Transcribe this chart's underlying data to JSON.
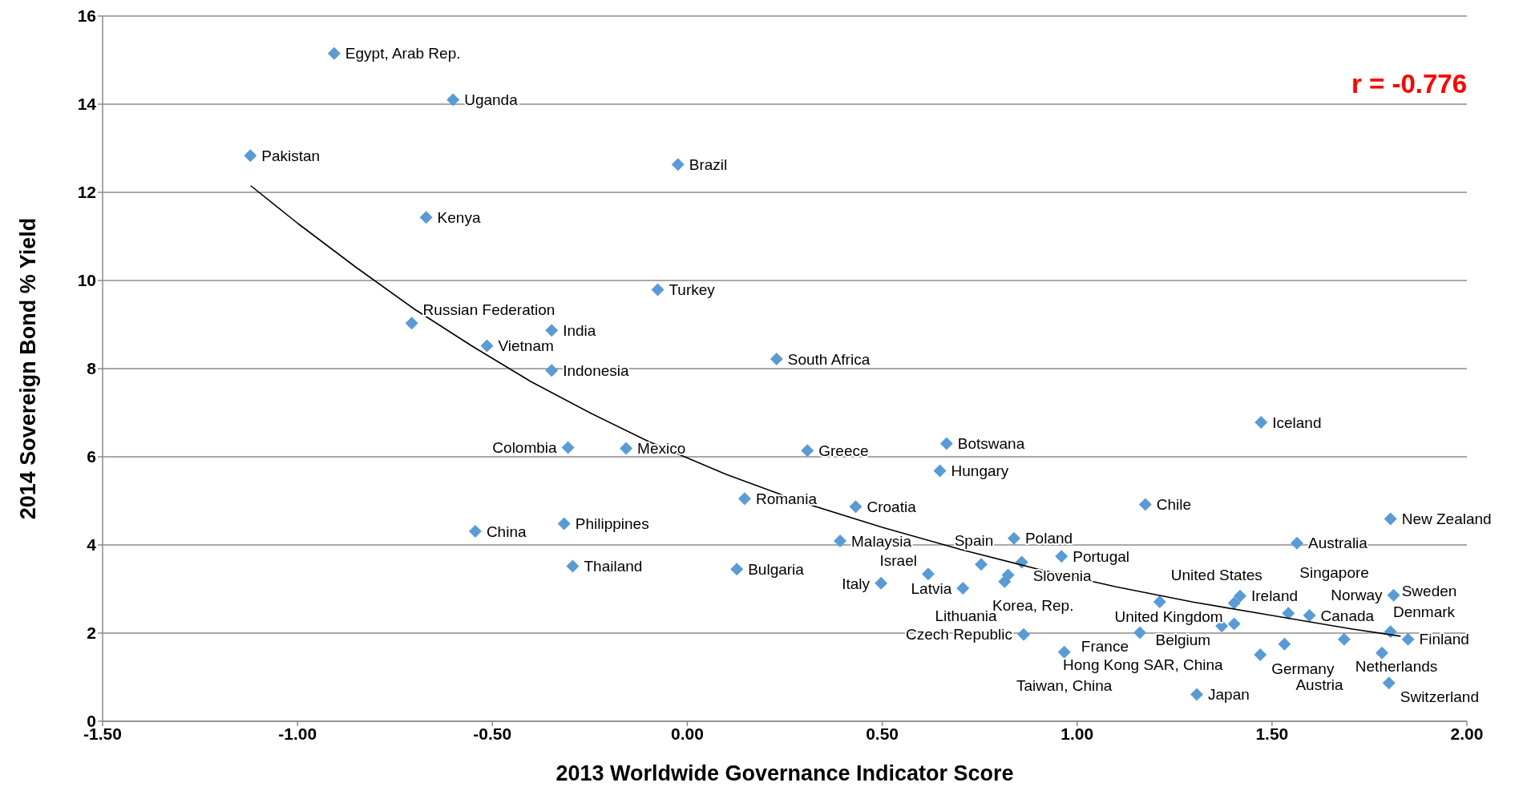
{
  "chart_data": {
    "type": "scatter",
    "xlabel": "2013 Worldwide Governance Indicator Score",
    "ylabel": "2014 Sovereign Bond % Yield",
    "xlim": [
      -1.5,
      2.0
    ],
    "xticks": [
      {
        "value": -1.5,
        "label": "-1.50"
      },
      {
        "value": -1.0,
        "label": "-1.00"
      },
      {
        "value": -0.5,
        "label": "-0.50"
      },
      {
        "value": 0,
        "label": "0.00"
      },
      {
        "value": 0.5,
        "label": "0.50"
      },
      {
        "value": 1.0,
        "label": "1.00"
      },
      {
        "value": 1.5,
        "label": "1.50"
      },
      {
        "value": 2.0,
        "label": "2.00"
      }
    ],
    "ylim": [
      0,
      16
    ],
    "yticks": [
      0,
      2,
      4,
      6,
      8,
      10,
      12,
      14,
      16
    ],
    "grid": "y",
    "marker": "diamond",
    "series": [
      {
        "color": "#5b9bd5",
        "x": [
          -0.906,
          -0.601,
          -1.121,
          -0.024,
          -0.67,
          -0.076,
          -0.707,
          -0.348,
          -0.514,
          -0.348,
          0.229,
          1.472,
          -0.306,
          -0.157,
          0.308,
          0.665,
          0.648,
          0.147,
          0.432,
          1.175,
          1.804,
          -0.544,
          -0.316,
          0.392,
          0.838,
          1.564,
          -0.294,
          0.127,
          0.96,
          0.754,
          0.858,
          0.618,
          0.823,
          0.814,
          0.707,
          0.497,
          1.212,
          1.418,
          1.403,
          1.542,
          1.596,
          1.371,
          1.403,
          1.161,
          0.863,
          0.967,
          1.307,
          1.47,
          1.532,
          1.685,
          1.782,
          1.804,
          1.849,
          1.812,
          1.8
        ],
        "values": [
          15.15,
          14.1,
          12.83,
          12.63,
          11.43,
          9.79,
          9.03,
          8.87,
          8.52,
          7.96,
          8.22,
          6.78,
          6.21,
          6.19,
          6.14,
          6.3,
          5.68,
          5.05,
          4.87,
          4.92,
          4.59,
          4.31,
          4.48,
          4.09,
          4.15,
          4.04,
          3.52,
          3.45,
          3.74,
          3.56,
          3.61,
          3.34,
          3.32,
          3.17,
          3.02,
          3.13,
          2.71,
          2.84,
          2.68,
          2.45,
          2.4,
          2.16,
          2.21,
          2.01,
          1.97,
          1.57,
          0.61,
          1.51,
          1.75,
          1.86,
          1.55,
          2.03,
          1.86,
          2.86,
          0.87
        ]
      },
      {
        "type": "line",
        "color": "#000000",
        "line_style": "solid",
        "marker": "none",
        "x": [
          -1.12,
          -1.0,
          -0.85,
          -0.7,
          -0.55,
          -0.4,
          -0.25,
          -0.1,
          0.1,
          0.3,
          0.5,
          0.7,
          0.9,
          1.1,
          1.3,
          1.5,
          1.7,
          1.83
        ],
        "values": [
          12.15,
          11.3,
          10.3,
          9.35,
          8.5,
          7.7,
          7.0,
          6.35,
          5.6,
          4.95,
          4.4,
          3.9,
          3.45,
          3.05,
          2.7,
          2.4,
          2.1,
          1.93
        ]
      }
    ],
    "annotations": [
      "r = -0.776",
      {
        "text": "Egypt, Arab Rep.",
        "x": -0.906,
        "y": 15.15
      },
      {
        "text": "Uganda",
        "x": -0.601,
        "y": 14.1
      },
      {
        "text": "Pakistan",
        "x": -1.121,
        "y": 12.83
      },
      {
        "text": "Brazil",
        "x": -0.024,
        "y": 12.63
      },
      {
        "text": "Kenya",
        "x": -0.67,
        "y": 11.43
      },
      {
        "text": "Turkey",
        "x": -0.076,
        "y": 9.79
      },
      {
        "text": "Russian Federation",
        "x": -0.707,
        "y": 9.03
      },
      {
        "text": "India",
        "x": -0.348,
        "y": 8.87
      },
      {
        "text": "Vietnam",
        "x": -0.514,
        "y": 8.52
      },
      {
        "text": "Indonesia",
        "x": -0.348,
        "y": 7.96
      },
      {
        "text": "South Africa",
        "x": 0.229,
        "y": 8.22
      },
      {
        "text": "Iceland",
        "x": 1.472,
        "y": 6.78
      },
      {
        "text": "Colombia",
        "x": -0.306,
        "y": 6.21
      },
      {
        "text": "Mexico",
        "x": -0.157,
        "y": 6.19
      },
      {
        "text": "Greece",
        "x": 0.308,
        "y": 6.14
      },
      {
        "text": "Botswana",
        "x": 0.665,
        "y": 6.3
      },
      {
        "text": "Hungary",
        "x": 0.648,
        "y": 5.68
      },
      {
        "text": "Romania",
        "x": 0.147,
        "y": 5.05
      },
      {
        "text": "Croatia",
        "x": 0.432,
        "y": 4.87
      },
      {
        "text": "Chile",
        "x": 1.175,
        "y": 4.92
      },
      {
        "text": "New Zealand",
        "x": 1.804,
        "y": 4.59
      },
      {
        "text": "China",
        "x": -0.544,
        "y": 4.31
      },
      {
        "text": "Philippines",
        "x": -0.316,
        "y": 4.48
      },
      {
        "text": "Malaysia",
        "x": 0.392,
        "y": 4.09
      },
      {
        "text": "Poland",
        "x": 0.838,
        "y": 4.15
      },
      {
        "text": "Australia",
        "x": 1.564,
        "y": 4.04
      },
      {
        "text": "Thailand",
        "x": -0.294,
        "y": 3.52
      },
      {
        "text": "Bulgaria",
        "x": 0.127,
        "y": 3.45
      },
      {
        "text": "Portugal",
        "x": 0.96,
        "y": 3.74
      },
      {
        "text": "Korea, Rep.",
        "x": 0.754,
        "y": 3.56
      },
      {
        "text": "Slovenia",
        "x": 0.858,
        "y": 3.61
      },
      {
        "text": "Israel",
        "x": 0.618,
        "y": 3.34
      },
      {
        "text": "Lithuania",
        "x": 0.823,
        "y": 3.32
      },
      {
        "text": "Spain",
        "x": 0.814,
        "y": 3.17
      },
      {
        "text": "Latvia",
        "x": 0.707,
        "y": 3.02
      },
      {
        "text": "Italy",
        "x": 0.497,
        "y": 3.13
      },
      {
        "text": "United States",
        "x": 1.212,
        "y": 2.71
      },
      {
        "text": "Ireland",
        "x": 1.418,
        "y": 2.84
      },
      {
        "text": "United Kingdom",
        "x": 1.403,
        "y": 2.68
      },
      {
        "text": "Singapore",
        "x": 1.542,
        "y": 2.45
      },
      {
        "text": "Canada",
        "x": 1.596,
        "y": 2.4
      },
      {
        "text": "Belgium",
        "x": 1.371,
        "y": 2.16
      },
      {
        "text": "Hong Kong SAR, China",
        "x": 1.403,
        "y": 2.21
      },
      {
        "text": "France",
        "x": 1.161,
        "y": 2.01
      },
      {
        "text": "Czech Republic",
        "x": 0.863,
        "y": 1.97
      },
      {
        "text": "Taiwan, China",
        "x": 0.967,
        "y": 1.57
      },
      {
        "text": "Japan",
        "x": 1.307,
        "y": 0.61
      },
      {
        "text": "Germany",
        "x": 1.47,
        "y": 1.51
      },
      {
        "text": "Austria",
        "x": 1.532,
        "y": 1.75
      },
      {
        "text": "Netherlands",
        "x": 1.685,
        "y": 1.86
      },
      {
        "text": "Denmark",
        "x": 1.782,
        "y": 1.55
      },
      {
        "text": "Sweden",
        "x": 1.804,
        "y": 2.03
      },
      {
        "text": "Finland",
        "x": 1.849,
        "y": 1.86
      },
      {
        "text": "Norway",
        "x": 1.812,
        "y": 2.86
      },
      {
        "text": "Switzerland",
        "x": 1.8,
        "y": 0.87
      }
    ]
  }
}
